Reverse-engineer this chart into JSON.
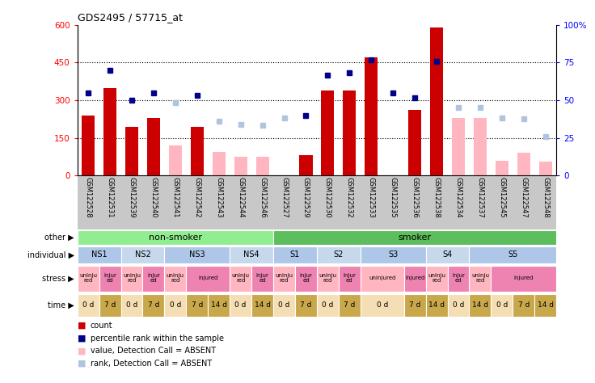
{
  "title": "GDS2495 / 57715_at",
  "samples": [
    "GSM122528",
    "GSM122531",
    "GSM122539",
    "GSM122540",
    "GSM122541",
    "GSM122542",
    "GSM122543",
    "GSM122544",
    "GSM122546",
    "GSM122527",
    "GSM122529",
    "GSM122530",
    "GSM122532",
    "GSM122533",
    "GSM122535",
    "GSM122536",
    "GSM122538",
    "GSM122534",
    "GSM122537",
    "GSM122545",
    "GSM122547",
    "GSM122548"
  ],
  "count_values": [
    240,
    350,
    195,
    230,
    null,
    195,
    null,
    null,
    null,
    null,
    80,
    340,
    340,
    470,
    null,
    260,
    590,
    null,
    null,
    null,
    null,
    null
  ],
  "count_absent": [
    null,
    null,
    null,
    null,
    120,
    null,
    95,
    75,
    75,
    null,
    null,
    null,
    null,
    null,
    null,
    null,
    null,
    230,
    230,
    60,
    90,
    55
  ],
  "rank_present": [
    330,
    420,
    300,
    330,
    null,
    320,
    null,
    null,
    null,
    null,
    240,
    400,
    410,
    460,
    330,
    310,
    455,
    null,
    null,
    null,
    null,
    null
  ],
  "rank_absent": [
    null,
    null,
    null,
    null,
    290,
    null,
    215,
    205,
    200,
    230,
    null,
    null,
    null,
    null,
    null,
    null,
    null,
    270,
    270,
    230,
    225,
    155
  ],
  "yticks_left": [
    0,
    150,
    300,
    450,
    600
  ],
  "ytick_labels_left": [
    "0",
    "150",
    "300",
    "450",
    "600"
  ],
  "ytick_labels_right": [
    "0",
    "25",
    "50",
    "75",
    "100%"
  ],
  "other_row": [
    {
      "label": "non-smoker",
      "start": 0,
      "end": 9,
      "color": "#90ee90"
    },
    {
      "label": "smoker",
      "start": 9,
      "end": 22,
      "color": "#5dbe5d"
    }
  ],
  "individual_row": [
    {
      "label": "NS1",
      "start": 0,
      "end": 2,
      "color": "#aec6e8"
    },
    {
      "label": "NS2",
      "start": 2,
      "end": 4,
      "color": "#c5d8ec"
    },
    {
      "label": "NS3",
      "start": 4,
      "end": 7,
      "color": "#aec6e8"
    },
    {
      "label": "NS4",
      "start": 7,
      "end": 9,
      "color": "#c5d8ec"
    },
    {
      "label": "S1",
      "start": 9,
      "end": 11,
      "color": "#aec6e8"
    },
    {
      "label": "S2",
      "start": 11,
      "end": 13,
      "color": "#c5d8ec"
    },
    {
      "label": "S3",
      "start": 13,
      "end": 16,
      "color": "#aec6e8"
    },
    {
      "label": "S4",
      "start": 16,
      "end": 18,
      "color": "#c5d8ec"
    },
    {
      "label": "S5",
      "start": 18,
      "end": 22,
      "color": "#aec6e8"
    }
  ],
  "stress_row": [
    {
      "label": "uninju\nred",
      "start": 0,
      "end": 1,
      "color": "#ffb6c1"
    },
    {
      "label": "injur\ned",
      "start": 1,
      "end": 2,
      "color": "#ee82b0"
    },
    {
      "label": "uninju\nred",
      "start": 2,
      "end": 3,
      "color": "#ffb6c1"
    },
    {
      "label": "injur\ned",
      "start": 3,
      "end": 4,
      "color": "#ee82b0"
    },
    {
      "label": "uninju\nred",
      "start": 4,
      "end": 5,
      "color": "#ffb6c1"
    },
    {
      "label": "injured",
      "start": 5,
      "end": 7,
      "color": "#ee82b0"
    },
    {
      "label": "uninju\nred",
      "start": 7,
      "end": 8,
      "color": "#ffb6c1"
    },
    {
      "label": "injur\ned",
      "start": 8,
      "end": 9,
      "color": "#ee82b0"
    },
    {
      "label": "uninju\nred",
      "start": 9,
      "end": 10,
      "color": "#ffb6c1"
    },
    {
      "label": "injur\ned",
      "start": 10,
      "end": 11,
      "color": "#ee82b0"
    },
    {
      "label": "uninju\nred",
      "start": 11,
      "end": 12,
      "color": "#ffb6c1"
    },
    {
      "label": "injur\ned",
      "start": 12,
      "end": 13,
      "color": "#ee82b0"
    },
    {
      "label": "uninjured",
      "start": 13,
      "end": 15,
      "color": "#ffb6c1"
    },
    {
      "label": "injured",
      "start": 15,
      "end": 16,
      "color": "#ee82b0"
    },
    {
      "label": "uninju\nred",
      "start": 16,
      "end": 17,
      "color": "#ffb6c1"
    },
    {
      "label": "injur\ned",
      "start": 17,
      "end": 18,
      "color": "#ee82b0"
    },
    {
      "label": "uninju\nred",
      "start": 18,
      "end": 19,
      "color": "#ffb6c1"
    },
    {
      "label": "injured",
      "start": 19,
      "end": 22,
      "color": "#ee82b0"
    }
  ],
  "time_row": [
    {
      "label": "0 d",
      "start": 0,
      "end": 1,
      "color": "#f5deb3"
    },
    {
      "label": "7 d",
      "start": 1,
      "end": 2,
      "color": "#c8a84b"
    },
    {
      "label": "0 d",
      "start": 2,
      "end": 3,
      "color": "#f5deb3"
    },
    {
      "label": "7 d",
      "start": 3,
      "end": 4,
      "color": "#c8a84b"
    },
    {
      "label": "0 d",
      "start": 4,
      "end": 5,
      "color": "#f5deb3"
    },
    {
      "label": "7 d",
      "start": 5,
      "end": 6,
      "color": "#c8a84b"
    },
    {
      "label": "14 d",
      "start": 6,
      "end": 7,
      "color": "#c8a84b"
    },
    {
      "label": "0 d",
      "start": 7,
      "end": 8,
      "color": "#f5deb3"
    },
    {
      "label": "14 d",
      "start": 8,
      "end": 9,
      "color": "#c8a84b"
    },
    {
      "label": "0 d",
      "start": 9,
      "end": 10,
      "color": "#f5deb3"
    },
    {
      "label": "7 d",
      "start": 10,
      "end": 11,
      "color": "#c8a84b"
    },
    {
      "label": "0 d",
      "start": 11,
      "end": 12,
      "color": "#f5deb3"
    },
    {
      "label": "7 d",
      "start": 12,
      "end": 13,
      "color": "#c8a84b"
    },
    {
      "label": "0 d",
      "start": 13,
      "end": 15,
      "color": "#f5deb3"
    },
    {
      "label": "7 d",
      "start": 15,
      "end": 16,
      "color": "#c8a84b"
    },
    {
      "label": "14 d",
      "start": 16,
      "end": 17,
      "color": "#c8a84b"
    },
    {
      "label": "0 d",
      "start": 17,
      "end": 18,
      "color": "#f5deb3"
    },
    {
      "label": "14 d",
      "start": 18,
      "end": 19,
      "color": "#c8a84b"
    },
    {
      "label": "0 d",
      "start": 19,
      "end": 20,
      "color": "#f5deb3"
    },
    {
      "label": "7 d",
      "start": 20,
      "end": 21,
      "color": "#c8a84b"
    },
    {
      "label": "14 d",
      "start": 21,
      "end": 22,
      "color": "#c8a84b"
    }
  ],
  "bar_width": 0.6,
  "count_color": "#cc0000",
  "count_absent_color": "#ffb6c1",
  "rank_color": "#00008b",
  "rank_absent_color": "#b0c4de",
  "xlabels_bg": "#c8c8c8",
  "legend_items": [
    {
      "color": "#cc0000",
      "marker": "square",
      "label": "count"
    },
    {
      "color": "#00008b",
      "marker": "square",
      "label": "percentile rank within the sample"
    },
    {
      "color": "#ffb6c1",
      "marker": "square",
      "label": "value, Detection Call = ABSENT"
    },
    {
      "color": "#b0c4de",
      "marker": "square",
      "label": "rank, Detection Call = ABSENT"
    }
  ],
  "row_labels": [
    "other",
    "individual",
    "stress",
    "time"
  ]
}
